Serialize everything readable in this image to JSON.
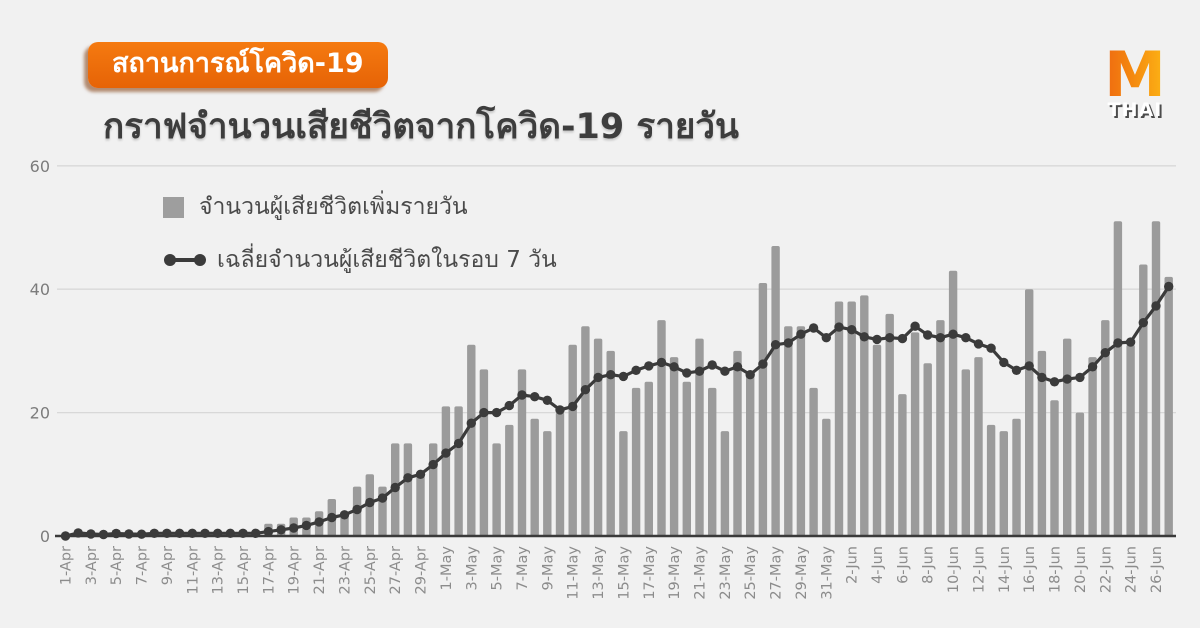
{
  "header": {
    "badge": "สถานการณ์โควิด-19",
    "title": "กราฟจำนวนเสียชีวิตจากโควิด-19 รายวัน"
  },
  "logo": {
    "letter": "M",
    "text": "THAI"
  },
  "legend": {
    "bars_label": "จำนวนผู้เสียชีวิตเพิ่มรายวัน",
    "line_label": "เฉลี่ยจำนวนผู้เสียชีวิตในรอบ 7 วัน"
  },
  "colors": {
    "background": "#f1f1f1",
    "bar": "#9b9b9b",
    "line": "#3b3b3b",
    "grid": "#d8d8d8",
    "axis": "#3a3a3a",
    "x_tick_text": "#8c8c8c",
    "y_tick_text": "#7c7c7c",
    "badge_orange": "#ee6f0d",
    "logo_orange": "#ef6a10",
    "logo_yellow": "#fdb515"
  },
  "chart_data": {
    "type": "bar",
    "title": "กราฟจำนวนเสียชีวิตจากโควิด-19 รายวัน",
    "grid": "horizontal",
    "legend_position": "top-left-inside",
    "ylim": [
      0,
      60
    ],
    "yticks": [
      0,
      20,
      40,
      60
    ],
    "x_label_every": 2,
    "categories": [
      "1-Apr",
      "2-Apr",
      "3-Apr",
      "4-Apr",
      "5-Apr",
      "6-Apr",
      "7-Apr",
      "8-Apr",
      "9-Apr",
      "10-Apr",
      "11-Apr",
      "12-Apr",
      "13-Apr",
      "14-Apr",
      "15-Apr",
      "16-Apr",
      "17-Apr",
      "18-Apr",
      "19-Apr",
      "20-Apr",
      "21-Apr",
      "22-Apr",
      "23-Apr",
      "24-Apr",
      "25-Apr",
      "26-Apr",
      "27-Apr",
      "28-Apr",
      "29-Apr",
      "30-Apr",
      "1-May",
      "2-May",
      "3-May",
      "4-May",
      "5-May",
      "6-May",
      "7-May",
      "8-May",
      "9-May",
      "10-May",
      "11-May",
      "12-May",
      "13-May",
      "14-May",
      "15-May",
      "16-May",
      "17-May",
      "18-May",
      "19-May",
      "20-May",
      "21-May",
      "22-May",
      "23-May",
      "24-May",
      "25-May",
      "26-May",
      "27-May",
      "28-May",
      "29-May",
      "30-May",
      "31-May",
      "1-Jun",
      "2-Jun",
      "3-Jun",
      "4-Jun",
      "5-Jun",
      "6-Jun",
      "7-Jun",
      "8-Jun",
      "9-Jun",
      "10-Jun",
      "11-Jun",
      "12-Jun",
      "13-Jun",
      "14-Jun",
      "15-Jun",
      "16-Jun",
      "17-Jun",
      "18-Jun",
      "19-Jun",
      "20-Jun",
      "21-Jun",
      "22-Jun",
      "23-Jun",
      "24-Jun",
      "25-Jun",
      "26-Jun",
      "27-Jun"
    ],
    "series": [
      {
        "name": "จำนวนผู้เสียชีวิตเพิ่มรายวัน",
        "type": "bar",
        "values": [
          0,
          1,
          0,
          0,
          1,
          0,
          0,
          1,
          1,
          0,
          0,
          1,
          0,
          0,
          1,
          1,
          2,
          2,
          3,
          3,
          4,
          6,
          4,
          8,
          10,
          8,
          15,
          15,
          10,
          15,
          21,
          21,
          31,
          27,
          15,
          18,
          27,
          19,
          17,
          20,
          31,
          34,
          32,
          30,
          17,
          24,
          25,
          35,
          29,
          25,
          32,
          24,
          17,
          30,
          26,
          41,
          47,
          34,
          34,
          24,
          19,
          38,
          38,
          39,
          31,
          36,
          23,
          33,
          28,
          35,
          43,
          27,
          29,
          18,
          17,
          19,
          40,
          30,
          22,
          32,
          20,
          29,
          35,
          51,
          31,
          44,
          51,
          42
        ]
      },
      {
        "name": "เฉลี่ยจำนวนผู้เสียชีวิตในรอบ 7 วัน",
        "type": "line",
        "window": 7,
        "values": [
          0,
          0.5,
          0.33,
          0.25,
          0.4,
          0.33,
          0.29,
          0.43,
          0.43,
          0.43,
          0.43,
          0.43,
          0.43,
          0.43,
          0.43,
          0.43,
          0.71,
          1,
          1.29,
          1.71,
          2.29,
          3,
          3.43,
          4.29,
          5.43,
          6.14,
          7.86,
          9.43,
          10,
          11.57,
          13.43,
          15,
          18.29,
          20,
          20,
          21.14,
          22.86,
          22.57,
          22,
          20.43,
          21,
          23.71,
          25.71,
          26.14,
          25.86,
          26.86,
          27.57,
          28.14,
          27.43,
          26.43,
          26.71,
          27.71,
          26.71,
          27.43,
          26.14,
          27.86,
          31,
          31.29,
          32.71,
          33.71,
          32.14,
          33.86,
          33.43,
          32.29,
          31.86,
          32.14,
          32,
          34,
          32.57,
          32.14,
          32.71,
          32.14,
          31.14,
          30.43,
          28.14,
          26.86,
          27.57,
          25.71,
          25,
          25.43,
          25.71,
          27.43,
          29.71,
          31.29,
          31.43,
          34.57,
          37.29,
          40.43
        ]
      }
    ]
  }
}
